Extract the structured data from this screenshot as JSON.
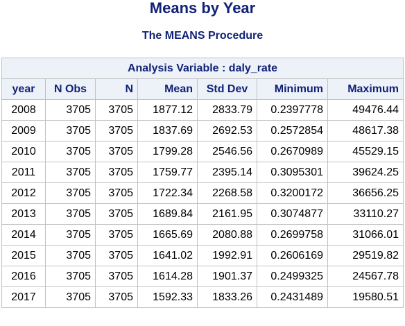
{
  "title": "Means by Year",
  "subtitle": "The MEANS Procedure",
  "analysis_caption": "Analysis Variable : daly_rate",
  "columns": [
    "year",
    "N Obs",
    "N",
    "Mean",
    "Std Dev",
    "Minimum",
    "Maximum"
  ],
  "rows": [
    [
      "2008",
      "3705",
      "3705",
      "1877.12",
      "2833.79",
      "0.2397778",
      "49476.44"
    ],
    [
      "2009",
      "3705",
      "3705",
      "1837.69",
      "2692.53",
      "0.2572854",
      "48617.38"
    ],
    [
      "2010",
      "3705",
      "3705",
      "1799.28",
      "2546.56",
      "0.2670989",
      "45529.15"
    ],
    [
      "2011",
      "3705",
      "3705",
      "1759.77",
      "2395.14",
      "0.3095301",
      "39624.25"
    ],
    [
      "2012",
      "3705",
      "3705",
      "1722.34",
      "2268.58",
      "0.3200172",
      "36656.25"
    ],
    [
      "2013",
      "3705",
      "3705",
      "1689.84",
      "2161.95",
      "0.3074877",
      "33110.27"
    ],
    [
      "2014",
      "3705",
      "3705",
      "1665.69",
      "2080.88",
      "0.2699758",
      "31066.01"
    ],
    [
      "2015",
      "3705",
      "3705",
      "1641.02",
      "1992.91",
      "0.2606169",
      "29519.82"
    ],
    [
      "2016",
      "3705",
      "3705",
      "1614.28",
      "1901.37",
      "0.2499325",
      "24567.78"
    ],
    [
      "2017",
      "3705",
      "3705",
      "1592.33",
      "1833.26",
      "0.2431489",
      "19580.51"
    ]
  ],
  "colors": {
    "header_text": "#112277",
    "header_bg": "#edf2f9",
    "border": "#c1c1c1"
  }
}
